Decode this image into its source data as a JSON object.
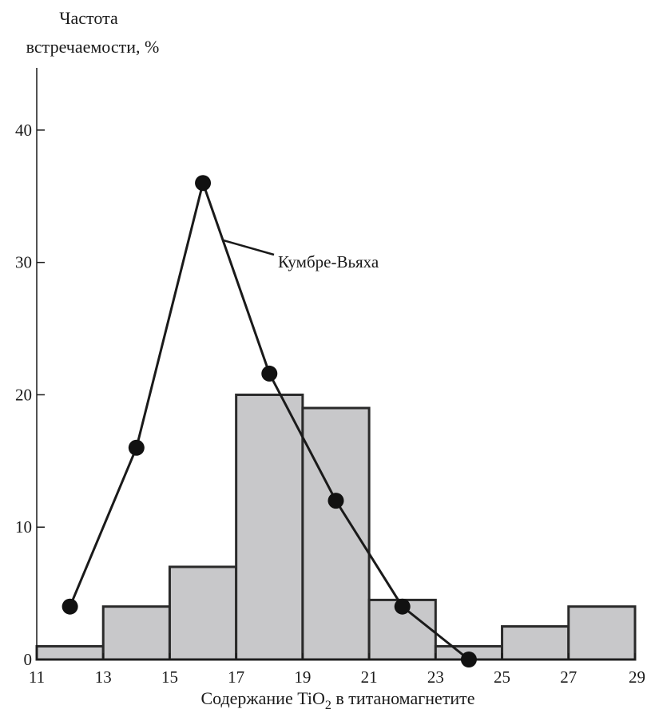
{
  "chart_data": {
    "type": "bar",
    "ylabel_line1": "Частота",
    "ylabel_line2": "встречаемости, %",
    "xlabel_main": "Содержание TiO",
    "xlabel_sub": "2",
    "xlabel_tail": " в титаномагнетите",
    "xlim": [
      11,
      29
    ],
    "ylim": [
      0,
      40
    ],
    "x_ticks": [
      11,
      13,
      15,
      17,
      19,
      21,
      23,
      25,
      27,
      29
    ],
    "y_ticks": [
      0,
      10,
      20,
      30,
      40
    ],
    "bins": [
      {
        "from": 11,
        "to": 13,
        "value": 1
      },
      {
        "from": 13,
        "to": 15,
        "value": 4
      },
      {
        "from": 15,
        "to": 17,
        "value": 7
      },
      {
        "from": 17,
        "to": 19,
        "value": 20
      },
      {
        "from": 19,
        "to": 21,
        "value": 19
      },
      {
        "from": 21,
        "to": 23,
        "value": 4.5
      },
      {
        "from": 23,
        "to": 25,
        "value": 1
      },
      {
        "from": 25,
        "to": 27,
        "value": 2.5
      },
      {
        "from": 27,
        "to": 29,
        "value": 4
      }
    ],
    "series": [
      {
        "name": "Кумбре-Вьяха",
        "type": "line",
        "points": [
          [
            12,
            4
          ],
          [
            14,
            16
          ],
          [
            16,
            36
          ],
          [
            18,
            21.6
          ],
          [
            20,
            12
          ],
          [
            22,
            4
          ],
          [
            24,
            0
          ]
        ]
      }
    ]
  }
}
